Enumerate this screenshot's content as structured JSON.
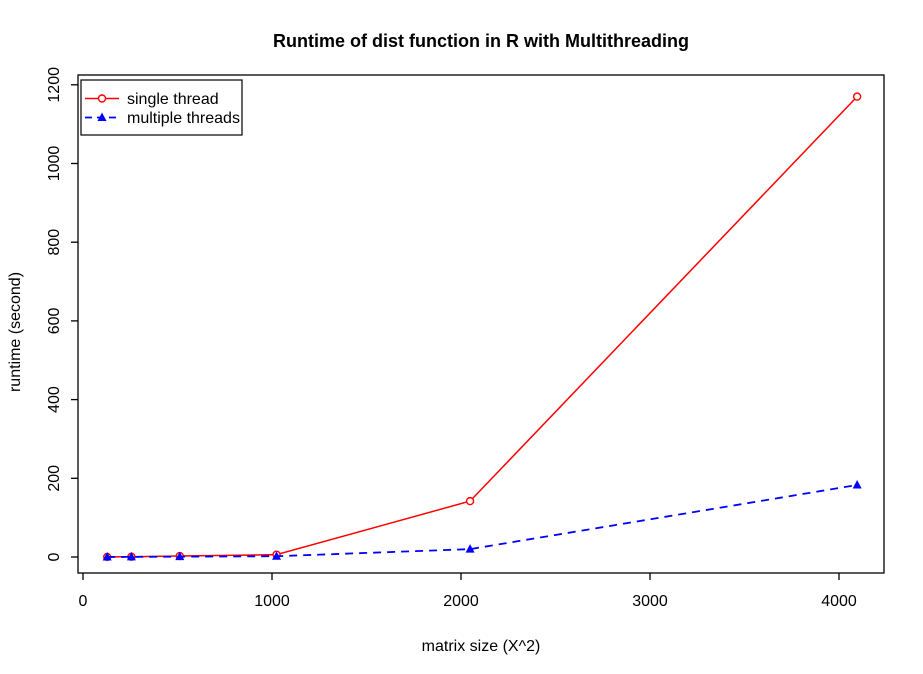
{
  "window": {
    "background": "#ffffff",
    "foreground": "#000000"
  },
  "chart_data": {
    "type": "line",
    "title": "Runtime of dist function in R with Multithreading",
    "xlabel": "matrix size (X^2)",
    "ylabel": "runtime (second)",
    "x": [
      128,
      256,
      512,
      1024,
      2048,
      4096
    ],
    "series": [
      {
        "name": "single thread",
        "color": "#ff0000",
        "linestyle": "solid",
        "marker": "open-circle",
        "values": [
          0.2,
          0.7,
          2.5,
          6,
          142,
          1170
        ]
      },
      {
        "name": "multiple threads",
        "color": "#0000ff",
        "linestyle": "dashed",
        "marker": "filled-triangle",
        "values": [
          0.1,
          0.3,
          0.8,
          2,
          20,
          183
        ]
      }
    ],
    "x_ticks": [
      0,
      1000,
      2000,
      3000,
      4000
    ],
    "y_ticks": [
      0,
      200,
      400,
      600,
      800,
      1000,
      1200
    ],
    "xlim": [
      0,
      4240
    ],
    "ylim": [
      0,
      1220
    ],
    "grid": false,
    "legend_position": "top-left"
  }
}
